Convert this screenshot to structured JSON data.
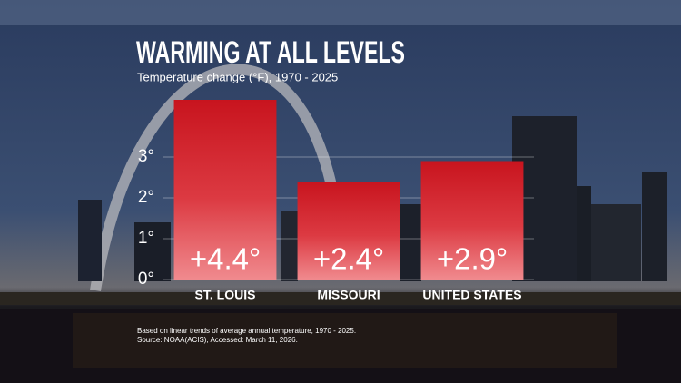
{
  "chart_data": {
    "type": "bar",
    "title": "WARMING AT ALL LEVELS",
    "subtitle": "Temperature change (°F), 1970 - 2025",
    "categories": [
      "ST. LOUIS",
      "MISSOURI",
      "UNITED STATES"
    ],
    "values": [
      4.4,
      2.4,
      2.9
    ],
    "value_labels": [
      "+4.4°",
      "+2.4°",
      "+2.9°"
    ],
    "color": "#c8141e",
    "ylim": [
      0,
      5
    ],
    "yticks": [
      {
        "value": 0,
        "label": "0°"
      },
      {
        "value": 1,
        "label": "1°"
      },
      {
        "value": 2,
        "label": "2°"
      },
      {
        "value": 3,
        "label": "3°"
      }
    ],
    "grid": true,
    "notes": [
      "Based on linear trends of average annual temperature, 1970 - 2025.",
      "Source: NOAA(ACIS), Accessed: March 11, 2026."
    ]
  }
}
